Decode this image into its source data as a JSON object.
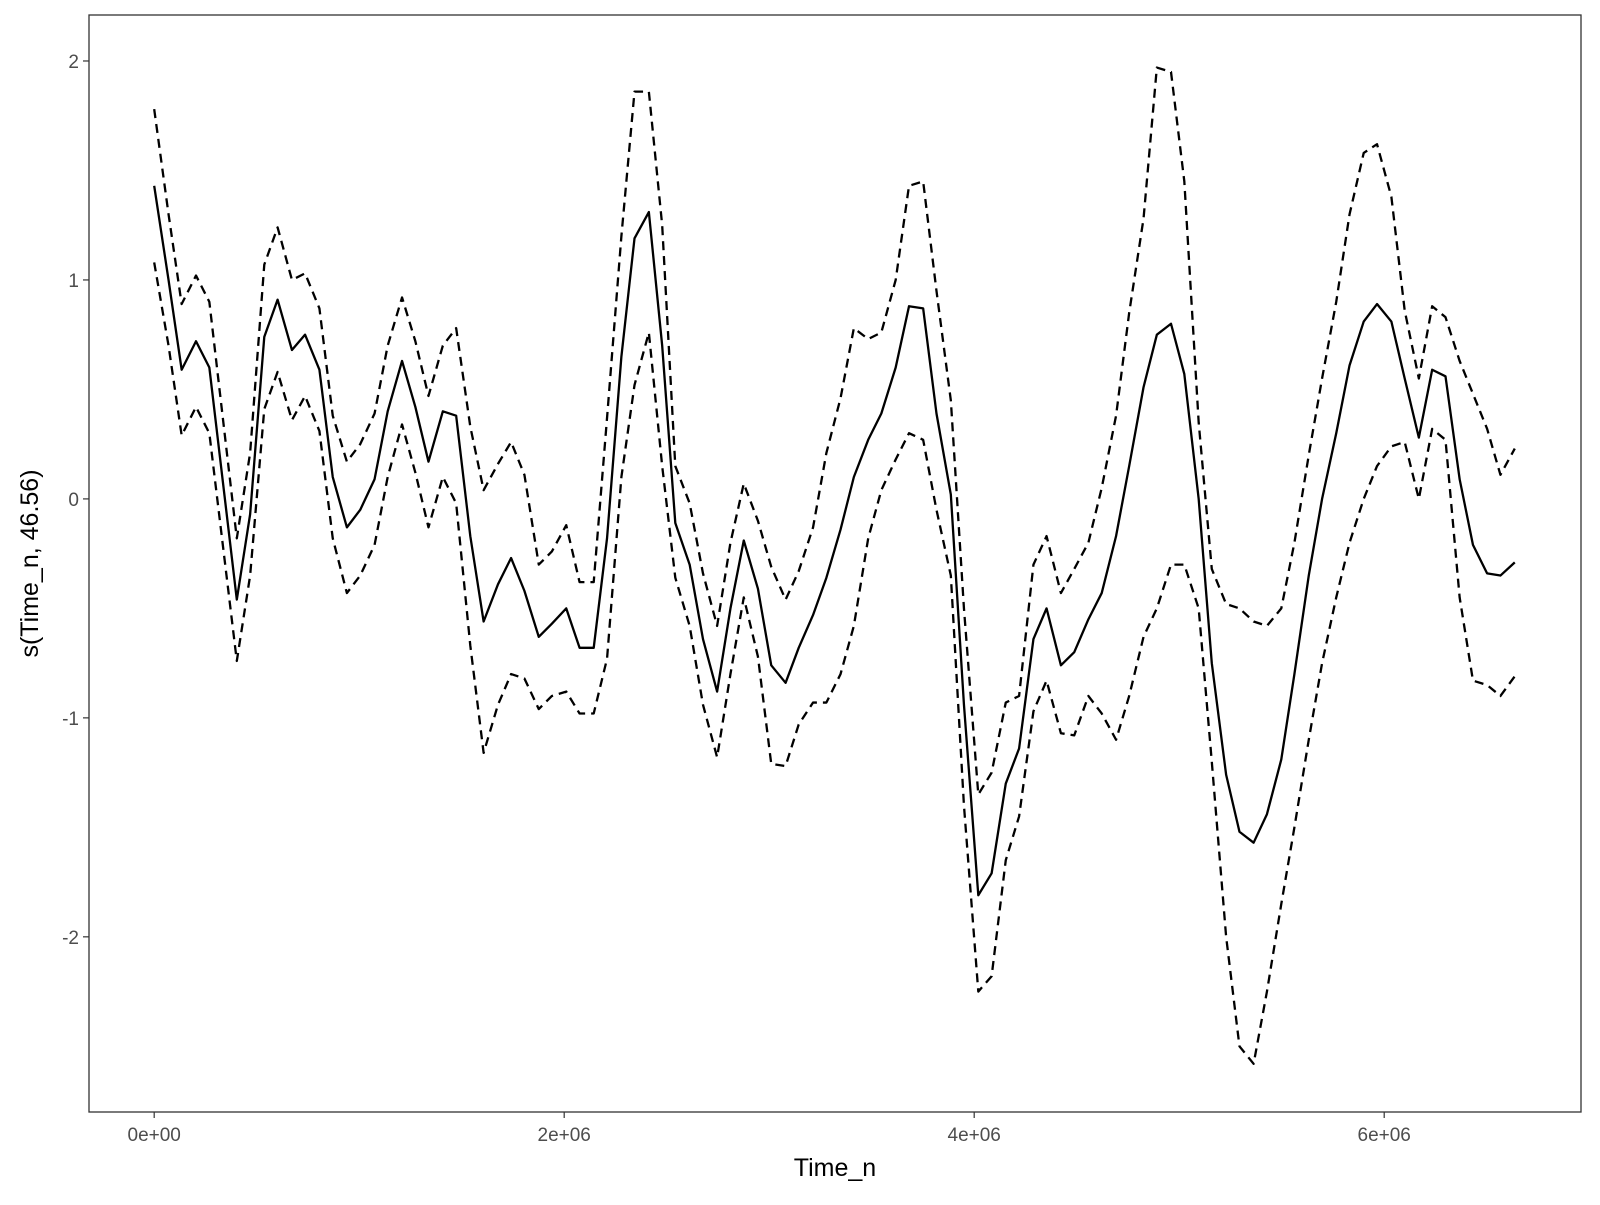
{
  "chart_data": {
    "type": "line",
    "x_label": "Time_n",
    "y_label": "s(Time_n, 46.56)",
    "x": [
      0,
      70000,
      134000,
      204000,
      269000,
      403000,
      468000,
      537000,
      602000,
      672000,
      736000,
      806000,
      871000,
      940000,
      1005000,
      1075000,
      1139000,
      1209000,
      1274000,
      1338000,
      1408000,
      1473000,
      1542000,
      1607000,
      1677000,
      1741000,
      1806000,
      1876000,
      1940000,
      2010000,
      2075000,
      2144000,
      2209000,
      2279000,
      2343000,
      2413000,
      2478000,
      2542000,
      2612000,
      2677000,
      2746000,
      2811000,
      2876000,
      2945000,
      3010000,
      3080000,
      3144000,
      3214000,
      3279000,
      3348000,
      3413000,
      3483000,
      3547000,
      3617000,
      3682000,
      3751000,
      3816000,
      3886000,
      3950000,
      4020000,
      4085000,
      4154000,
      4219000,
      4289000,
      4353000,
      4423000,
      4488000,
      4557000,
      4622000,
      4692000,
      4756000,
      4826000,
      4891000,
      4960000,
      5025000,
      5095000,
      5159000,
      5229000,
      5294000,
      5363000,
      5428000,
      5498000,
      5562000,
      5632000,
      5697000,
      5766000,
      5831000,
      5900000,
      5965000,
      6035000,
      6100000,
      6169000,
      6234000,
      6299000,
      6368000,
      6433000,
      6502000,
      6567000,
      6637000
    ],
    "series": [
      {
        "color": "#000000",
        "dash": "solid",
        "values": [
          1.43,
          1.0,
          0.59,
          0.72,
          0.6,
          -0.46,
          -0.07,
          0.74,
          0.91,
          0.68,
          0.75,
          0.59,
          0.1,
          -0.13,
          -0.05,
          0.09,
          0.4,
          0.63,
          0.42,
          0.17,
          0.4,
          0.38,
          -0.17,
          -0.56,
          -0.39,
          -0.27,
          -0.42,
          -0.63,
          -0.57,
          -0.5,
          -0.68,
          -0.68,
          -0.18,
          0.65,
          1.19,
          1.31,
          0.7,
          -0.11,
          -0.3,
          -0.64,
          -0.88,
          -0.5,
          -0.19,
          -0.41,
          -0.76,
          -0.84,
          -0.68,
          -0.53,
          -0.36,
          -0.14,
          0.1,
          0.27,
          0.39,
          0.6,
          0.88,
          0.87,
          0.39,
          0.02,
          -0.94,
          -1.81,
          -1.71,
          -1.3,
          -1.14,
          -0.64,
          -0.5,
          -0.76,
          -0.7,
          -0.55,
          -0.43,
          -0.17,
          0.15,
          0.51,
          0.75,
          0.8,
          0.57,
          0.0,
          -0.75,
          -1.26,
          -1.52,
          -1.57,
          -1.44,
          -1.19,
          -0.8,
          -0.35,
          0.0,
          0.3,
          0.61,
          0.81,
          0.89,
          0.81,
          0.55,
          0.28,
          0.59,
          0.56,
          0.09,
          -0.21,
          -0.34,
          -0.35,
          -0.29
        ]
      },
      {
        "color": "#000000",
        "dash": "dashed",
        "values": [
          1.78,
          1.3,
          0.89,
          1.02,
          0.9,
          -0.18,
          0.21,
          1.07,
          1.24,
          1.0,
          1.03,
          0.87,
          0.38,
          0.17,
          0.25,
          0.39,
          0.7,
          0.92,
          0.72,
          0.47,
          0.7,
          0.78,
          0.33,
          0.04,
          0.16,
          0.26,
          0.11,
          -0.3,
          -0.24,
          -0.12,
          -0.38,
          -0.38,
          0.37,
          1.2,
          1.86,
          1.86,
          1.25,
          0.15,
          -0.02,
          -0.34,
          -0.58,
          -0.2,
          0.07,
          -0.1,
          -0.31,
          -0.46,
          -0.33,
          -0.13,
          0.21,
          0.46,
          0.78,
          0.73,
          0.76,
          1.0,
          1.43,
          1.45,
          0.95,
          0.45,
          -0.5,
          -1.35,
          -1.25,
          -0.93,
          -0.9,
          -0.3,
          -0.17,
          -0.43,
          -0.32,
          -0.2,
          0.05,
          0.38,
          0.85,
          1.28,
          1.97,
          1.95,
          1.45,
          0.35,
          -0.32,
          -0.48,
          -0.5,
          -0.56,
          -0.58,
          -0.5,
          -0.2,
          0.2,
          0.55,
          0.9,
          1.3,
          1.58,
          1.62,
          1.38,
          0.86,
          0.55,
          0.88,
          0.83,
          0.63,
          0.48,
          0.32,
          0.11,
          0.23
        ]
      },
      {
        "color": "#000000",
        "dash": "dashed",
        "values": [
          1.08,
          0.7,
          0.29,
          0.42,
          0.3,
          -0.74,
          -0.35,
          0.41,
          0.58,
          0.36,
          0.47,
          0.31,
          -0.18,
          -0.43,
          -0.35,
          -0.21,
          0.1,
          0.34,
          0.12,
          -0.13,
          0.1,
          -0.02,
          -0.67,
          -1.16,
          -0.94,
          -0.8,
          -0.82,
          -0.96,
          -0.9,
          -0.88,
          -0.98,
          -0.98,
          -0.73,
          0.1,
          0.52,
          0.76,
          0.15,
          -0.36,
          -0.58,
          -0.94,
          -1.18,
          -0.8,
          -0.45,
          -0.72,
          -1.21,
          -1.22,
          -1.03,
          -0.93,
          -0.93,
          -0.8,
          -0.58,
          -0.18,
          0.04,
          0.18,
          0.3,
          0.27,
          -0.05,
          -0.35,
          -1.4,
          -2.25,
          -2.18,
          -1.65,
          -1.45,
          -0.97,
          -0.83,
          -1.07,
          -1.08,
          -0.9,
          -0.98,
          -1.1,
          -0.9,
          -0.63,
          -0.5,
          -0.3,
          -0.3,
          -0.5,
          -1.2,
          -2.0,
          -2.5,
          -2.58,
          -2.25,
          -1.85,
          -1.5,
          -1.1,
          -0.75,
          -0.45,
          -0.2,
          0.0,
          0.15,
          0.24,
          0.26,
          0.0,
          0.32,
          0.27,
          -0.45,
          -0.83,
          -0.85,
          -0.9,
          -0.81
        ]
      }
    ],
    "xlim": [
      -318000,
      6960000
    ],
    "ylim": [
      -2.8,
      2.21
    ],
    "xticks": [
      {
        "value": 0,
        "label": "0e+00"
      },
      {
        "value": 2000000,
        "label": "2e+06"
      },
      {
        "value": 4000000,
        "label": "4e+06"
      },
      {
        "value": 6000000,
        "label": "6e+06"
      }
    ],
    "yticks": [
      -2,
      -1,
      0,
      1,
      2
    ],
    "grid": false
  }
}
